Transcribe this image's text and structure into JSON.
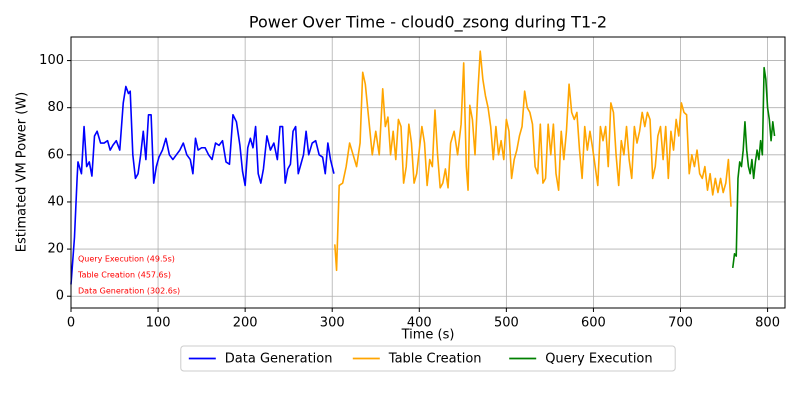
{
  "chart_data": {
    "type": "line",
    "title": "Power Over Time - cloud0_zsong during T1-2",
    "x_label": "Time (s)",
    "y_label": "Estimated VM Power (W)",
    "xlim": [
      0,
      820
    ],
    "ylim": [
      -5,
      110
    ],
    "xticks": [
      0,
      100,
      200,
      300,
      400,
      500,
      600,
      700,
      800
    ],
    "yticks": [
      0,
      20,
      40,
      60,
      80,
      100
    ],
    "grid": true,
    "legend": "bottom",
    "annotation_color": "#ff0000",
    "annotations": [
      "Query Execution (49.5s)",
      "Table Creation (457.6s)",
      "Data Generation (302.6s)"
    ],
    "series": [
      {
        "name": "Data Generation",
        "color": "#0000ff",
        "x": [
          0,
          4,
          7,
          8,
          12,
          15,
          18,
          21,
          24,
          27,
          30,
          34,
          38,
          42,
          45,
          48,
          52,
          56,
          60,
          63,
          66,
          68,
          71,
          74,
          77,
          80,
          83,
          86,
          89,
          92,
          95,
          98,
          101,
          105,
          109,
          113,
          117,
          121,
          125,
          129,
          133,
          137,
          140,
          143,
          146,
          150,
          154,
          158,
          162,
          166,
          170,
          174,
          178,
          182,
          186,
          190,
          194,
          197,
          200,
          203,
          206,
          209,
          212,
          215,
          218,
          221,
          225,
          229,
          233,
          237,
          240,
          243,
          246,
          249,
          252,
          255,
          258,
          261,
          264,
          267,
          270,
          273,
          277,
          281,
          285,
          289,
          292,
          295,
          298,
          302
        ],
        "values": [
          5,
          25,
          50,
          57,
          52,
          72,
          55,
          57,
          51,
          68,
          70,
          65,
          65,
          66,
          62,
          64,
          66,
          62,
          82,
          89,
          86,
          87,
          60,
          50,
          52,
          60,
          70,
          58,
          77,
          77,
          48,
          55,
          59,
          62,
          67,
          60,
          58,
          60,
          62,
          65,
          60,
          58,
          52,
          67,
          62,
          63,
          63,
          60,
          58,
          65,
          64,
          66,
          57,
          56,
          77,
          74,
          64,
          53,
          47,
          63,
          67,
          63,
          72,
          52,
          48,
          54,
          68,
          62,
          65,
          58,
          72,
          72,
          48,
          54,
          56,
          70,
          72,
          52,
          56,
          60,
          70,
          60,
          65,
          66,
          60,
          59,
          52,
          65,
          58,
          52
        ]
      },
      {
        "name": "Table Creation",
        "color": "#ffa500",
        "x": [
          303,
          305,
          308,
          312,
          316,
          320,
          324,
          328,
          332,
          335,
          338,
          342,
          346,
          350,
          354,
          358,
          361,
          364,
          367,
          370,
          373,
          376,
          379,
          382,
          385,
          388,
          391,
          394,
          397,
          400,
          403,
          406,
          409,
          412,
          415,
          418,
          421,
          424,
          427,
          430,
          433,
          436,
          440,
          444,
          448,
          451,
          454,
          456,
          458,
          461,
          464,
          467,
          470,
          473,
          476,
          479,
          482,
          485,
          488,
          491,
          494,
          497,
          500,
          503,
          506,
          509,
          512,
          515,
          518,
          521,
          524,
          527,
          530,
          533,
          536,
          539,
          542,
          545,
          548,
          551,
          554,
          557,
          560,
          563,
          566,
          569,
          572,
          575,
          578,
          581,
          584,
          587,
          590,
          593,
          596,
          599,
          602,
          605,
          608,
          611,
          614,
          617,
          620,
          623,
          626,
          629,
          632,
          635,
          638,
          641,
          644,
          647,
          650,
          653,
          656,
          659,
          662,
          665,
          668,
          671,
          674,
          677,
          680,
          683,
          686,
          689,
          692,
          695,
          698,
          701,
          704,
          707,
          710,
          713,
          716,
          719,
          722,
          725,
          728,
          731,
          734,
          737,
          740,
          743,
          746,
          749,
          752,
          755,
          758
        ],
        "values": [
          22,
          11,
          47,
          48,
          55,
          65,
          60,
          55,
          65,
          95,
          90,
          75,
          60,
          70,
          60,
          88,
          72,
          76,
          60,
          70,
          58,
          75,
          72,
          48,
          55,
          73,
          65,
          48,
          52,
          62,
          72,
          65,
          47,
          58,
          55,
          79,
          60,
          46,
          48,
          54,
          46,
          65,
          70,
          60,
          73,
          99,
          55,
          45,
          81,
          75,
          60,
          85,
          104,
          92,
          85,
          80,
          72,
          58,
          72,
          60,
          66,
          58,
          75,
          70,
          50,
          58,
          62,
          68,
          72,
          87,
          80,
          78,
          73,
          55,
          52,
          73,
          48,
          50,
          73,
          60,
          73,
          52,
          45,
          70,
          58,
          70,
          90,
          78,
          75,
          78,
          62,
          50,
          72,
          62,
          70,
          63,
          55,
          47,
          72,
          66,
          72,
          55,
          82,
          78,
          60,
          47,
          66,
          60,
          72,
          58,
          50,
          72,
          65,
          70,
          78,
          72,
          78,
          75,
          50,
          55,
          68,
          72,
          58,
          72,
          50,
          70,
          62,
          75,
          68,
          82,
          78,
          77,
          52,
          60,
          55,
          62,
          52,
          50,
          55,
          45,
          52,
          43,
          50,
          44,
          50,
          44,
          48,
          58,
          38
        ]
      },
      {
        "name": "Query Execution",
        "color": "#008000",
        "x": [
          760,
          762,
          764,
          766,
          768,
          770,
          772,
          774,
          776,
          778,
          780,
          782,
          784,
          786,
          788,
          790,
          792,
          794,
          796,
          798,
          800,
          802,
          804,
          806,
          808
        ],
        "values": [
          12,
          18,
          17,
          50,
          57,
          55,
          62,
          74,
          62,
          55,
          52,
          58,
          50,
          57,
          62,
          58,
          66,
          60,
          97,
          92,
          80,
          75,
          66,
          74,
          68
        ]
      }
    ]
  }
}
